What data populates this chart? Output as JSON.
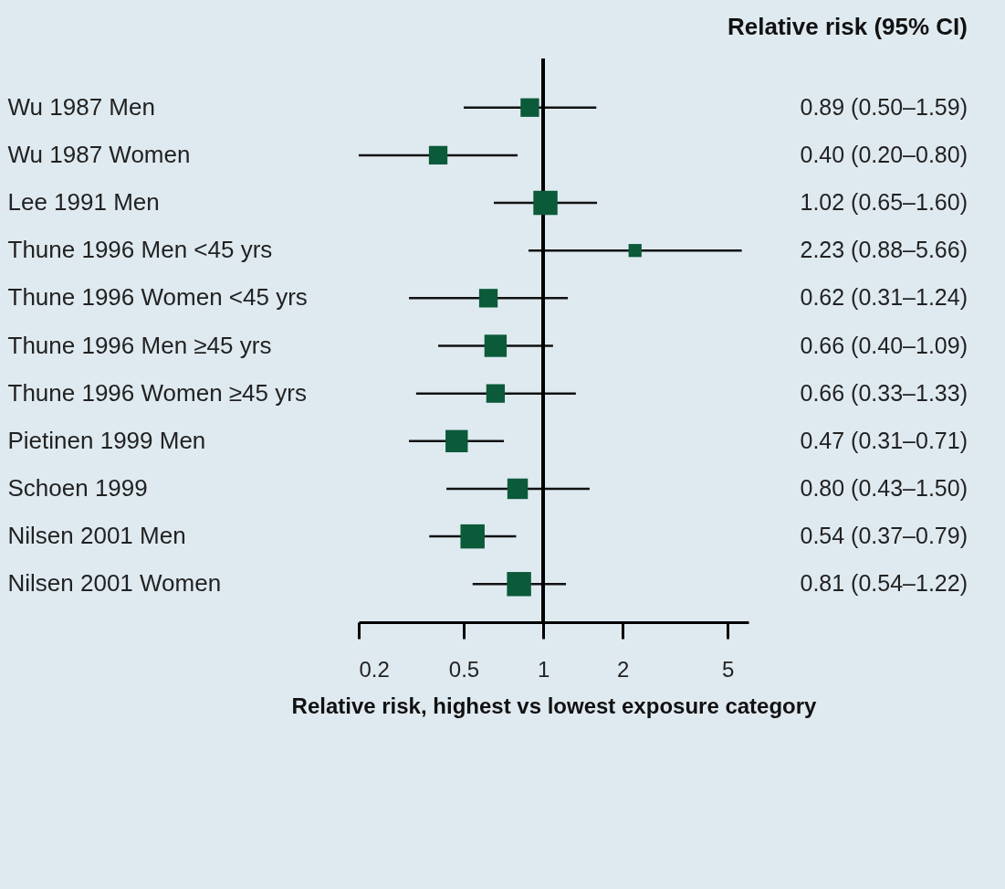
{
  "chart_data": {
    "type": "bubble",
    "title": "Relative risk (95% CI)",
    "xlabel": "Relative risk, highest vs lowest exposure category",
    "orientation": "horizontal",
    "categories": [
      "Wu 1987 Men",
      "Wu 1987 Women",
      "Lee 1991 Men",
      "Thune 1996 Men <45 yrs",
      "Thune 1996 Women <45 yrs",
      "Thune 1996 Men ≥45 yrs",
      "Thune 1996 Women ≥45 yrs",
      "Pietinen 1999 Men",
      "Schoen 1999",
      "Nilsen 2001 Men",
      "Nilsen 2001 Women"
    ],
    "values": [
      0.89,
      0.4,
      1.02,
      2.23,
      0.62,
      0.66,
      0.66,
      0.47,
      0.8,
      0.54,
      0.81
    ],
    "errors": [
      [
        0.5,
        1.59
      ],
      [
        0.2,
        0.8
      ],
      [
        0.65,
        1.6
      ],
      [
        0.88,
        5.66
      ],
      [
        0.31,
        1.24
      ],
      [
        0.4,
        1.09
      ],
      [
        0.33,
        1.33
      ],
      [
        0.31,
        0.71
      ],
      [
        0.43,
        1.5
      ],
      [
        0.37,
        0.79
      ],
      [
        0.54,
        1.22
      ]
    ],
    "sizes": [
      0.59,
      0.59,
      1,
      0.29,
      0.59,
      0.85,
      0.59,
      0.85,
      0.72,
      1,
      1
    ],
    "value_labels": [
      "0.89 (0.50–1.59)",
      "0.40 (0.20–0.80)",
      "1.02 (0.65–1.60)",
      "2.23 (0.88–5.66)",
      "0.62 (0.31–1.24)",
      "0.66 (0.40–1.09)",
      "0.66 (0.33–1.33)",
      "0.47 (0.31–0.71)",
      "0.80 (0.43–1.50)",
      "0.54 (0.37–0.79)",
      "0.81 (0.54–1.22)"
    ],
    "color": "#0b5a3a",
    "marker": "square",
    "log": "x",
    "xlim": [
      0.2,
      6
    ],
    "xticks": [
      0.2,
      0.5,
      1,
      2,
      5
    ],
    "ref_lines": [
      {
        "axis": "x",
        "value": 1,
        "color": "#000000"
      }
    ]
  }
}
